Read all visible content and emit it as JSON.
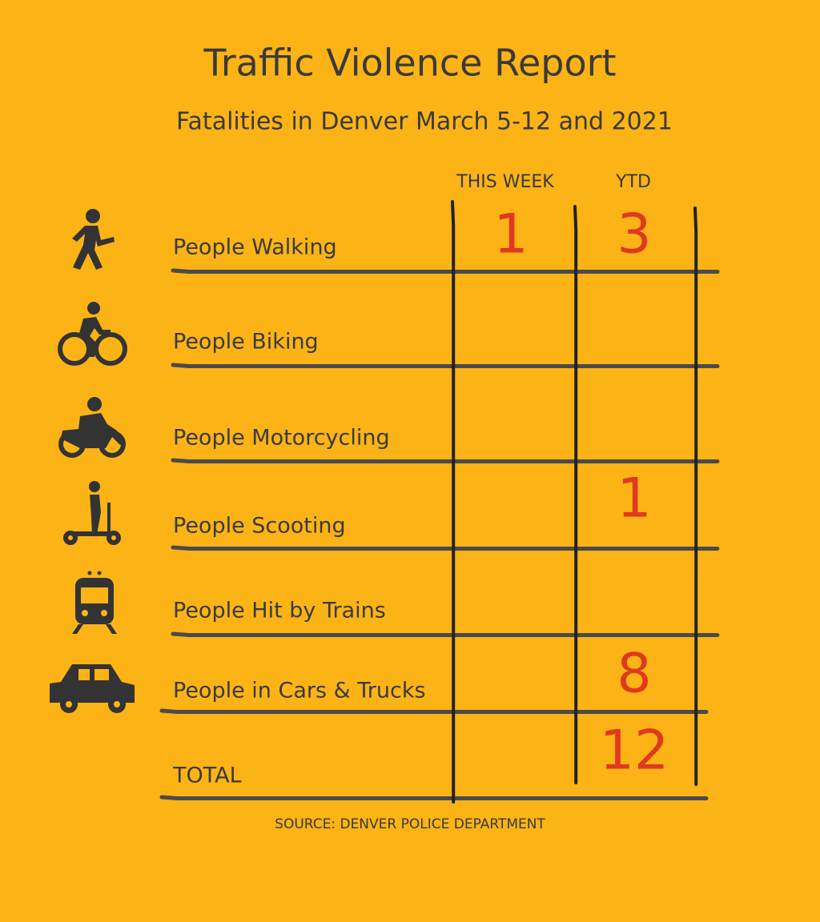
{
  "header": {
    "title": "Traffic Violence Report",
    "subtitle": "Fatalities in Denver March 5-12 and 2021"
  },
  "table": {
    "columns": [
      "THIS WEEK",
      "YTD"
    ],
    "rows": [
      [
        "People Walking",
        1,
        3
      ],
      [
        "People Biking",
        null,
        null
      ],
      [
        "People Motorcycling",
        null,
        null
      ],
      [
        "People Scooting",
        null,
        1
      ],
      [
        "People Hit by Trains",
        null,
        null
      ],
      [
        "People in Cars & Trucks",
        null,
        8
      ],
      [
        "TOTAL",
        null,
        12
      ]
    ]
  },
  "footer": {
    "source": "SOURCE: DENVER POLICE DEPARTMENT"
  }
}
